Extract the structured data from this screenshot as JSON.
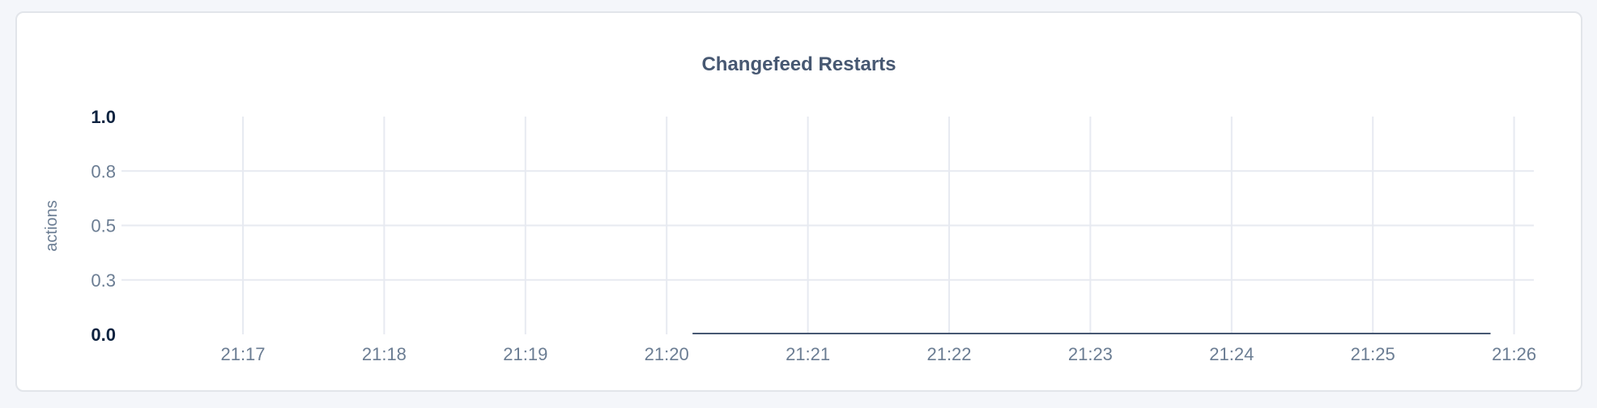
{
  "chart_data": {
    "type": "line",
    "title": "Changefeed Restarts",
    "ylabel": "actions",
    "xlabel": "",
    "ylim": [
      0,
      1
    ],
    "y_ticks": [
      {
        "value": 0,
        "label": "0.0"
      },
      {
        "value": 0.25,
        "label": "0.3"
      },
      {
        "value": 0.5,
        "label": "0.5"
      },
      {
        "value": 0.75,
        "label": "0.8"
      },
      {
        "value": 1,
        "label": "1.0"
      }
    ],
    "x_ticks": [
      "21:17",
      "21:18",
      "21:19",
      "21:20",
      "21:21",
      "21:22",
      "21:23",
      "21:24",
      "21:25",
      "21:26"
    ],
    "grid": true,
    "series": [
      {
        "color": "#475872",
        "x": [
          "21:20:11",
          "21:25:50"
        ],
        "y": [
          0,
          0
        ]
      }
    ]
  },
  "colors": {
    "grid": "#e7eaf1",
    "tick_label": "#6b7d93",
    "bold_tick_label": "#0d2340",
    "title": "#475872"
  }
}
